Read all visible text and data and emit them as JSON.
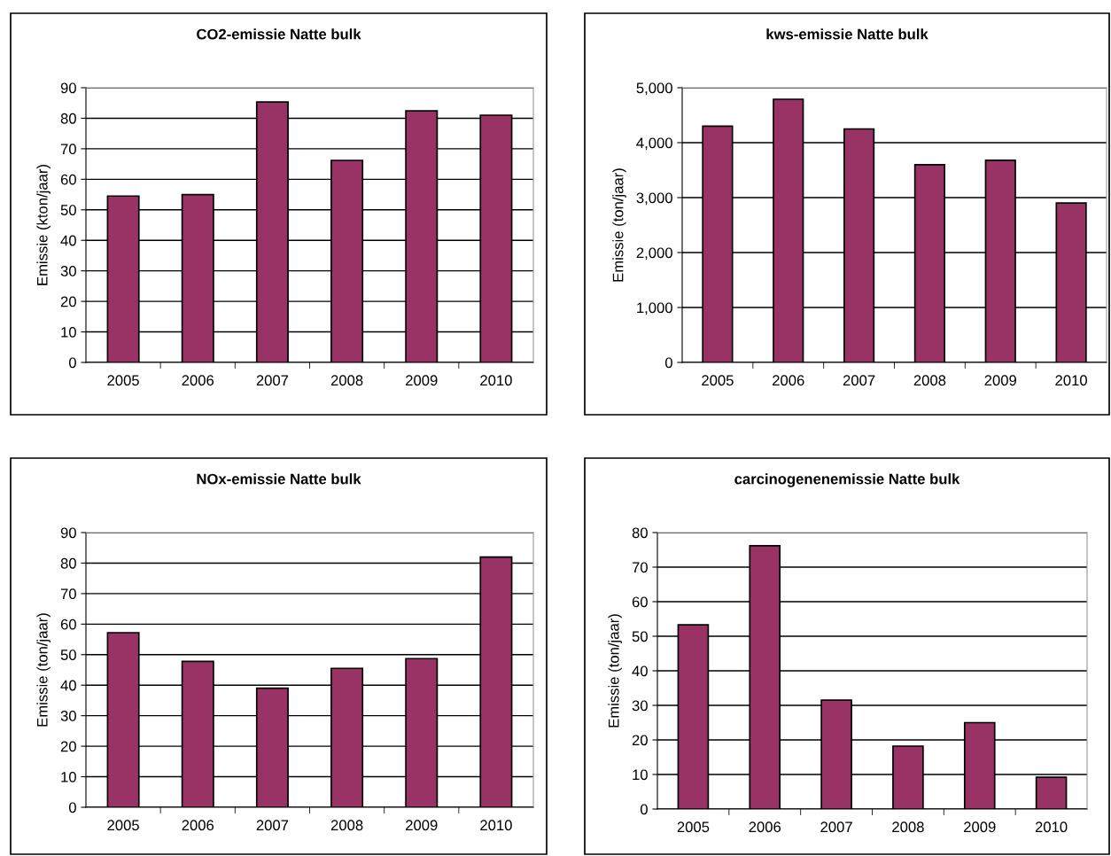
{
  "chart_data": [
    {
      "type": "bar",
      "title": "CO2-emissie Natte bulk",
      "ylabel": "Emissie (kton/jaar)",
      "categories": [
        "2005",
        "2006",
        "2007",
        "2008",
        "2009",
        "2010"
      ],
      "values": [
        54.5,
        55,
        85.3,
        66.2,
        82.4,
        81
      ],
      "color": "#993366",
      "ylim": [
        0,
        90
      ],
      "yticks": [
        0,
        10,
        20,
        30,
        40,
        50,
        60,
        70,
        80,
        90
      ],
      "grid": "y",
      "legend": false
    },
    {
      "type": "bar",
      "title": "kws-emissie Natte bulk",
      "ylabel": "Emissie (ton/jaar)",
      "categories": [
        "2005",
        "2006",
        "2007",
        "2008",
        "2009",
        "2010"
      ],
      "values": [
        4300,
        4790,
        4250,
        3600,
        3680,
        2900
      ],
      "color": "#993366",
      "ylim": [
        0,
        5000
      ],
      "yticks": [
        0,
        {
          "value": 1000,
          "label": "1,000"
        },
        {
          "value": 2000,
          "label": "2,000"
        },
        {
          "value": 3000,
          "label": "3,000"
        },
        {
          "value": 4000,
          "label": "4,000"
        },
        {
          "value": 5000,
          "label": "5,000"
        }
      ],
      "grid": "y",
      "legend": false
    },
    {
      "type": "bar",
      "title": "NOx-emissie Natte bulk",
      "ylabel": "Emissie (ton/jaar)",
      "categories": [
        "2005",
        "2006",
        "2007",
        "2008",
        "2009",
        "2010"
      ],
      "values": [
        57.2,
        47.8,
        39,
        45.5,
        48.7,
        82
      ],
      "color": "#993366",
      "ylim": [
        0,
        90
      ],
      "yticks": [
        0,
        10,
        20,
        30,
        40,
        50,
        60,
        70,
        80,
        90
      ],
      "grid": "y",
      "legend": false
    },
    {
      "type": "bar",
      "title": "carcinogenenemissie Natte bulk",
      "ylabel": "Emissie (ton/jaar)",
      "categories": [
        "2005",
        "2006",
        "2007",
        "2008",
        "2009",
        "2010"
      ],
      "values": [
        53.3,
        76.2,
        31.5,
        18.2,
        25,
        9.2
      ],
      "color": "#993366",
      "ylim": [
        0,
        80
      ],
      "yticks": [
        0,
        10,
        20,
        30,
        40,
        50,
        60,
        70,
        80
      ],
      "grid": "y",
      "legend": false
    }
  ]
}
